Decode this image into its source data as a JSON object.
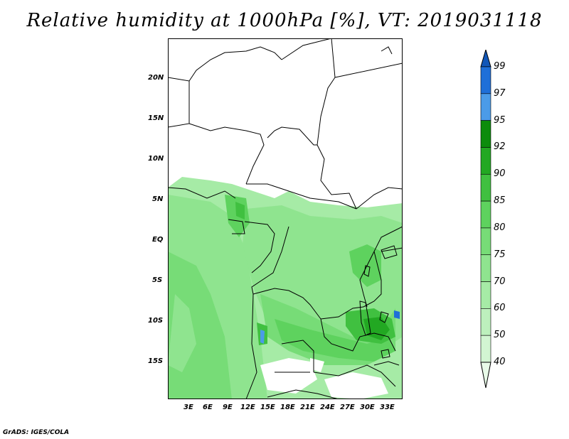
{
  "title": "Relative humidity at 1000hPa [%], VT: 2019031118",
  "credit": "GrADS: IGES/COLA",
  "map": {
    "lat_labels": [
      "20N",
      "15N",
      "10N",
      "5N",
      "EQ",
      "5S",
      "10S",
      "15S"
    ],
    "lon_labels": [
      "3E",
      "6E",
      "9E",
      "12E",
      "15E",
      "18E",
      "21E",
      "24E",
      "27E",
      "30E",
      "33E"
    ]
  },
  "colorbar": {
    "levels": [
      "40",
      "50",
      "60",
      "70",
      "75",
      "80",
      "85",
      "90",
      "92",
      "95",
      "97",
      "99"
    ],
    "colors": [
      "#e8fbe8",
      "#d2f5d2",
      "#bdf0bd",
      "#a6eba6",
      "#8fe48f",
      "#77dc77",
      "#5ed25e",
      "#40c040",
      "#22a822",
      "#0c8c0c",
      "#4b9be8",
      "#1f6fd8",
      "#1257b8"
    ],
    "bands": [
      {
        "color": "#1257b8",
        "label": ""
      },
      {
        "color": "#1f6fd8",
        "label": "99"
      },
      {
        "color": "#4b9be8",
        "label": "97"
      },
      {
        "color": "#0c8c0c",
        "label": "95"
      },
      {
        "color": "#22a822",
        "label": "92"
      },
      {
        "color": "#40c040",
        "label": "90"
      },
      {
        "color": "#5ed25e",
        "label": "85"
      },
      {
        "color": "#77dc77",
        "label": "80"
      },
      {
        "color": "#8fe48f",
        "label": "75"
      },
      {
        "color": "#a6eba6",
        "label": "70"
      },
      {
        "color": "#bdf0bd",
        "label": "60"
      },
      {
        "color": "#d2f5d2",
        "label": "50"
      },
      {
        "color": "#e8fbe8",
        "label": "40"
      }
    ]
  }
}
